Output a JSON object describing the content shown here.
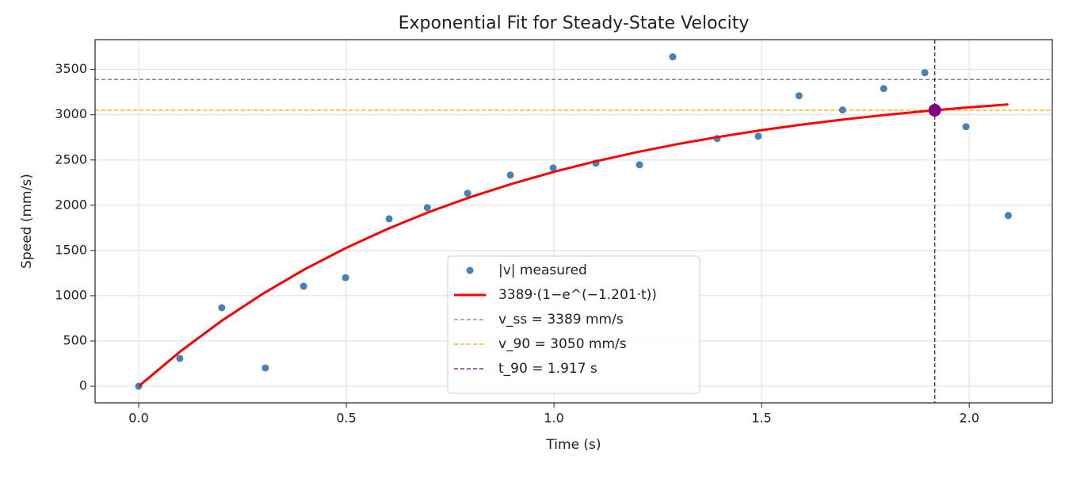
{
  "chart_data": {
    "type": "scatter",
    "title": "Exponential Fit for Steady-State Velocity",
    "x_label": "Time (s)",
    "y_label": "Speed (mm/s)",
    "xlim": [
      -0.105,
      2.2
    ],
    "ylim": [
      -184,
      3830
    ],
    "xticks": [
      {
        "value": 0,
        "label": "0.0"
      },
      0.5,
      {
        "value": 1,
        "label": "1.0"
      },
      1.5,
      {
        "value": 2,
        "label": "2.0"
      }
    ],
    "yticks": [
      0,
      500,
      1000,
      1500,
      2000,
      2500,
      3000,
      3500
    ],
    "grid": true,
    "legend": "lower center",
    "series": [
      {
        "name": "|v| measured",
        "type": "scatter",
        "color": "#4682b4",
        "x": [
          0,
          0.099,
          0.2,
          0.305,
          0.397,
          0.498,
          0.603,
          0.695,
          0.792,
          0.895,
          0.998,
          1.101,
          1.206,
          1.286,
          1.393,
          1.492,
          1.59,
          1.695,
          1.794,
          1.893,
          1.992,
          2.094
        ],
        "values": [
          0,
          307,
          868,
          202,
          1105,
          1200,
          1850,
          1974,
          2132,
          2333,
          2412,
          2465,
          2447,
          3640,
          2737,
          2763,
          3210,
          3053,
          3289,
          3465,
          2868,
          1886
        ]
      },
      {
        "name": "3389·(1−e^(−1.201·t))",
        "type": "line",
        "color": "#ff0000",
        "x": [
          0,
          0.1,
          0.2,
          0.3,
          0.4,
          0.5,
          0.6,
          0.7,
          0.8,
          0.9,
          1.0,
          1.1,
          1.2,
          1.3,
          1.4,
          1.5,
          1.6,
          1.7,
          1.8,
          1.9,
          2.0,
          2.094
        ],
        "values": [
          0,
          384,
          724,
          1025,
          1293,
          1530,
          1740,
          1927,
          2092,
          2239,
          2369,
          2485,
          2587,
          2678,
          2758,
          2830,
          2893,
          2949,
          2999,
          3043,
          3082,
          3115
        ]
      }
    ],
    "hlines": [
      {
        "name": "v_ss = 3389 mm/s",
        "value": 3389,
        "color": "#808080"
      },
      {
        "name": "v_90 = 3050 mm/s",
        "value": 3050,
        "color": "#ffa500"
      }
    ],
    "vlines": [
      {
        "name": "t_90 = 1.917 s",
        "value": 1.917,
        "color": "#800080"
      }
    ],
    "markers": [
      {
        "x": 1.917,
        "y": 3050,
        "color": "#800080"
      }
    ]
  }
}
